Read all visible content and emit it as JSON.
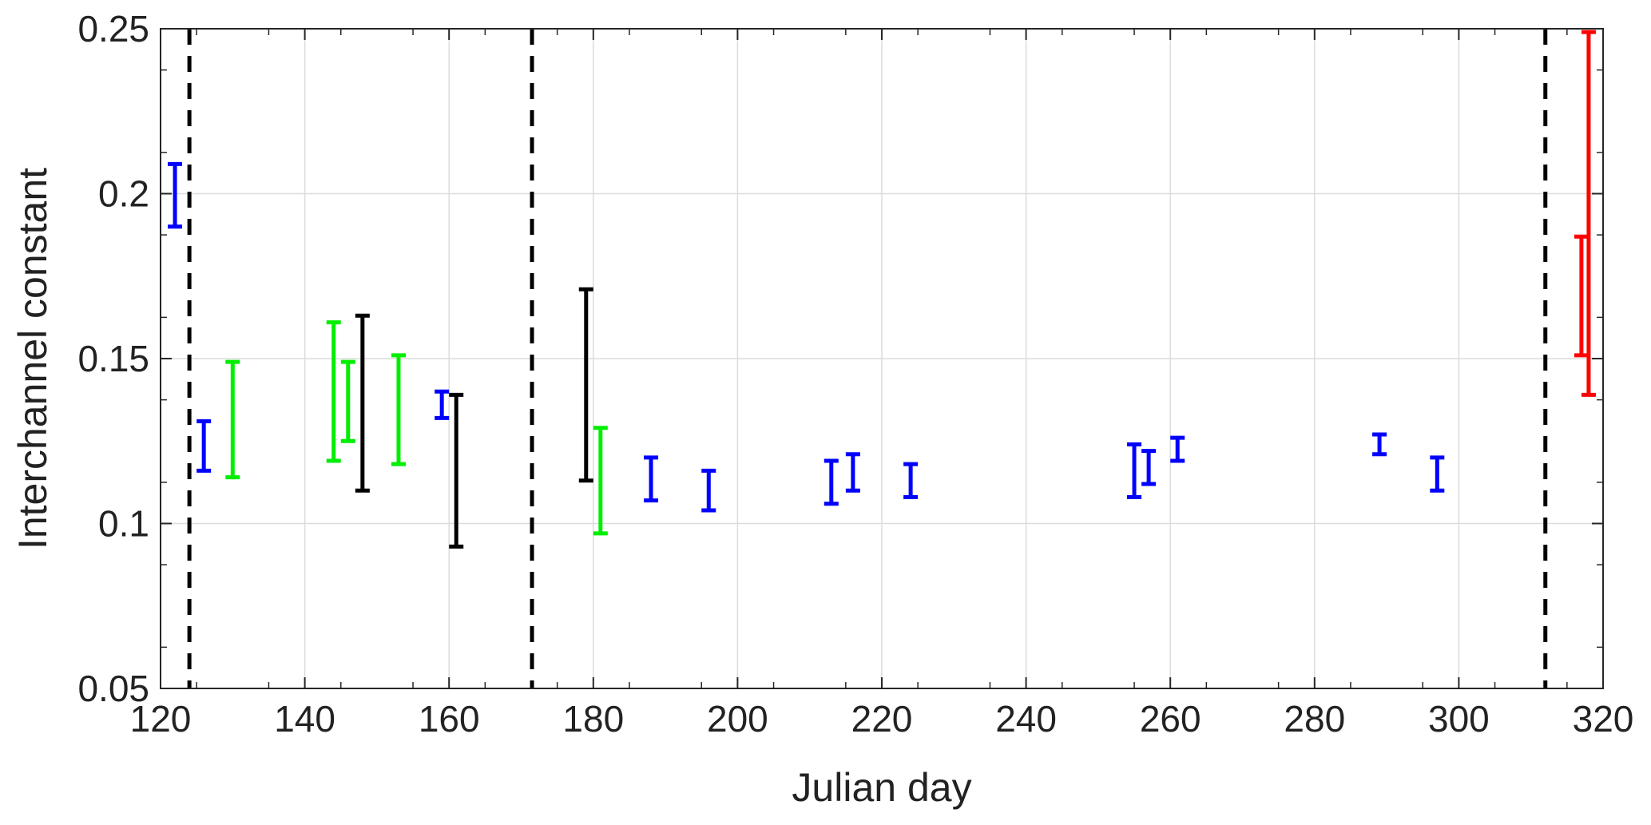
{
  "chart_data": {
    "type": "errorbar",
    "title": "",
    "xlabel": "Julian day",
    "ylabel": "Interchannel constant",
    "xlim": [
      120,
      320
    ],
    "ylim": [
      0.05,
      0.25
    ],
    "x_ticks": [
      120,
      140,
      160,
      180,
      200,
      220,
      240,
      260,
      280,
      300,
      320
    ],
    "y_ticks": [
      0.05,
      0.1,
      0.15,
      0.2,
      0.25
    ],
    "y_tick_labels": [
      "0.05",
      "0.1",
      "0.15",
      "0.2",
      "0.25"
    ],
    "grid": true,
    "legend": "none",
    "vertical_dashed_lines": [
      124,
      171.5,
      312
    ],
    "series": [
      {
        "color": "#0000ff",
        "points": [
          {
            "x": 122,
            "low": 0.19,
            "high": 0.209
          },
          {
            "x": 126,
            "low": 0.116,
            "high": 0.131
          },
          {
            "x": 159,
            "low": 0.132,
            "high": 0.14
          },
          {
            "x": 188,
            "low": 0.107,
            "high": 0.12
          },
          {
            "x": 196,
            "low": 0.104,
            "high": 0.116
          },
          {
            "x": 213,
            "low": 0.106,
            "high": 0.119
          },
          {
            "x": 216,
            "low": 0.11,
            "high": 0.121
          },
          {
            "x": 224,
            "low": 0.108,
            "high": 0.118
          },
          {
            "x": 255,
            "low": 0.108,
            "high": 0.124
          },
          {
            "x": 257,
            "low": 0.112,
            "high": 0.122
          },
          {
            "x": 261,
            "low": 0.119,
            "high": 0.126
          },
          {
            "x": 289,
            "low": 0.121,
            "high": 0.127
          },
          {
            "x": 297,
            "low": 0.11,
            "high": 0.12
          }
        ]
      },
      {
        "color": "#00ee00",
        "points": [
          {
            "x": 130,
            "low": 0.114,
            "high": 0.149
          },
          {
            "x": 144,
            "low": 0.119,
            "high": 0.161
          },
          {
            "x": 146,
            "low": 0.125,
            "high": 0.149
          },
          {
            "x": 153,
            "low": 0.118,
            "high": 0.151
          },
          {
            "x": 181,
            "low": 0.097,
            "high": 0.129
          }
        ]
      },
      {
        "color": "#000000",
        "points": [
          {
            "x": 148,
            "low": 0.11,
            "high": 0.163
          },
          {
            "x": 161,
            "low": 0.093,
            "high": 0.139
          },
          {
            "x": 179,
            "low": 0.113,
            "high": 0.171
          }
        ]
      },
      {
        "color": "#ff0000",
        "points": [
          {
            "x": 317,
            "low": 0.151,
            "high": 0.187
          },
          {
            "x": 318,
            "low": 0.139,
            "high": 0.249
          }
        ]
      }
    ]
  }
}
